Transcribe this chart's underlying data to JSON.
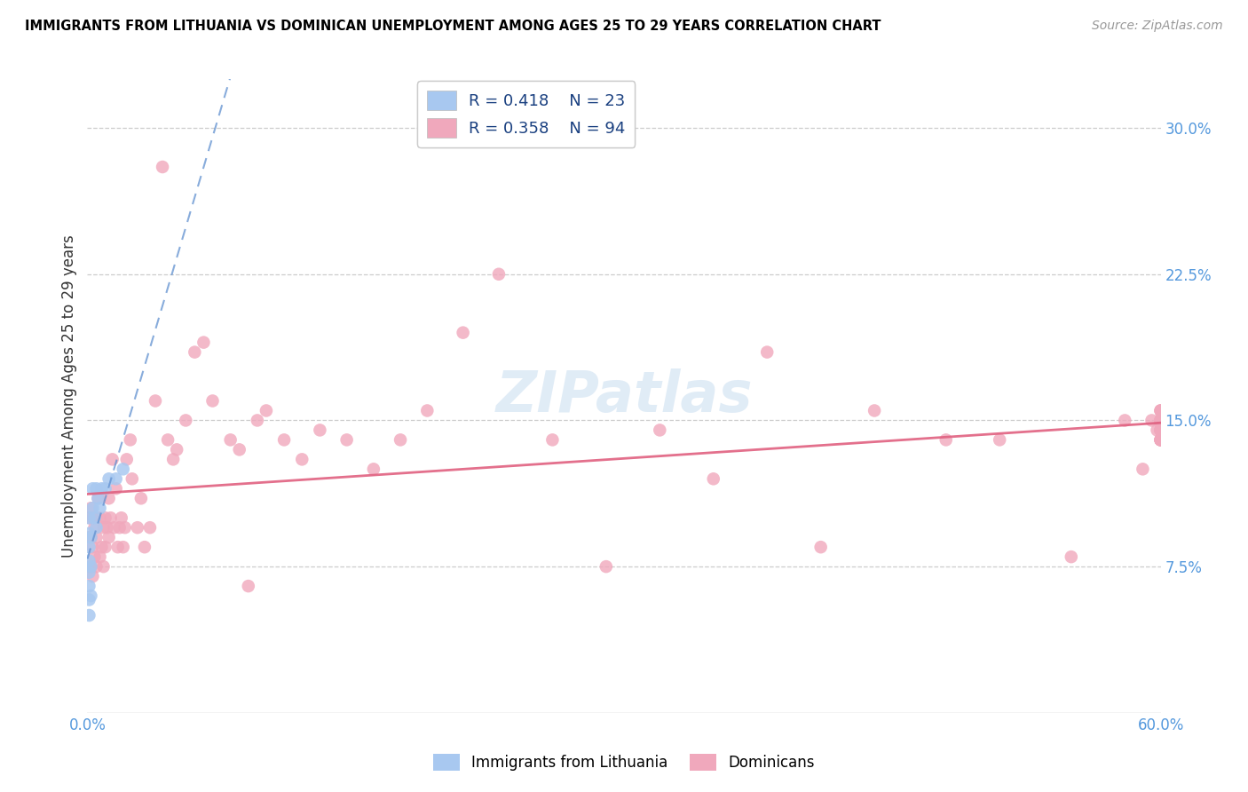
{
  "title": "IMMIGRANTS FROM LITHUANIA VS DOMINICAN UNEMPLOYMENT AMONG AGES 25 TO 29 YEARS CORRELATION CHART",
  "source": "Source: ZipAtlas.com",
  "ylabel_label": "Unemployment Among Ages 25 to 29 years",
  "xlim": [
    0.0,
    0.6
  ],
  "ylim": [
    0.0,
    0.325
  ],
  "legend_R1": "0.418",
  "legend_N1": "23",
  "legend_R2": "0.358",
  "legend_N2": "94",
  "legend_label1": "Immigrants from Lithuania",
  "legend_label2": "Dominicans",
  "color_blue": "#a8c8f0",
  "color_pink": "#f0a8bc",
  "trendline1_color": "#6090d0",
  "trendline2_color": "#e06080",
  "blue_x": [
    0.001,
    0.001,
    0.001,
    0.001,
    0.001,
    0.001,
    0.001,
    0.001,
    0.002,
    0.002,
    0.002,
    0.003,
    0.003,
    0.004,
    0.005,
    0.005,
    0.006,
    0.007,
    0.008,
    0.01,
    0.012,
    0.016,
    0.02
  ],
  "blue_y": [
    0.05,
    0.058,
    0.065,
    0.072,
    0.078,
    0.085,
    0.092,
    0.1,
    0.06,
    0.075,
    0.09,
    0.105,
    0.115,
    0.1,
    0.115,
    0.095,
    0.11,
    0.105,
    0.115,
    0.115,
    0.12,
    0.12,
    0.125
  ],
  "pink_x": [
    0.001,
    0.001,
    0.001,
    0.002,
    0.002,
    0.002,
    0.003,
    0.003,
    0.003,
    0.004,
    0.004,
    0.005,
    0.005,
    0.006,
    0.007,
    0.007,
    0.008,
    0.009,
    0.009,
    0.01,
    0.01,
    0.011,
    0.012,
    0.012,
    0.013,
    0.014,
    0.015,
    0.016,
    0.017,
    0.018,
    0.019,
    0.02,
    0.021,
    0.022,
    0.024,
    0.025,
    0.028,
    0.03,
    0.032,
    0.035,
    0.038,
    0.042,
    0.045,
    0.048,
    0.05,
    0.055,
    0.06,
    0.065,
    0.07,
    0.08,
    0.085,
    0.09,
    0.095,
    0.1,
    0.11,
    0.12,
    0.13,
    0.145,
    0.16,
    0.175,
    0.19,
    0.21,
    0.23,
    0.26,
    0.29,
    0.32,
    0.35,
    0.38,
    0.41,
    0.44,
    0.48,
    0.51,
    0.55,
    0.58,
    0.59,
    0.595,
    0.598,
    0.6,
    0.6,
    0.6,
    0.6,
    0.6,
    0.6,
    0.6,
    0.6,
    0.6,
    0.6,
    0.6,
    0.6,
    0.6,
    0.6,
    0.6,
    0.6,
    0.6
  ],
  "pink_y": [
    0.075,
    0.09,
    0.1,
    0.075,
    0.09,
    0.105,
    0.07,
    0.085,
    0.1,
    0.08,
    0.095,
    0.075,
    0.09,
    0.11,
    0.08,
    0.1,
    0.085,
    0.075,
    0.095,
    0.085,
    0.1,
    0.095,
    0.09,
    0.11,
    0.1,
    0.13,
    0.095,
    0.115,
    0.085,
    0.095,
    0.1,
    0.085,
    0.095,
    0.13,
    0.14,
    0.12,
    0.095,
    0.11,
    0.085,
    0.095,
    0.16,
    0.28,
    0.14,
    0.13,
    0.135,
    0.15,
    0.185,
    0.19,
    0.16,
    0.14,
    0.135,
    0.065,
    0.15,
    0.155,
    0.14,
    0.13,
    0.145,
    0.14,
    0.125,
    0.14,
    0.155,
    0.195,
    0.225,
    0.14,
    0.075,
    0.145,
    0.12,
    0.185,
    0.085,
    0.155,
    0.14,
    0.14,
    0.08,
    0.15,
    0.125,
    0.15,
    0.145,
    0.15,
    0.155,
    0.15,
    0.14,
    0.145,
    0.145,
    0.14,
    0.15,
    0.15,
    0.14,
    0.145,
    0.155,
    0.14,
    0.155,
    0.15,
    0.14,
    0.145
  ]
}
